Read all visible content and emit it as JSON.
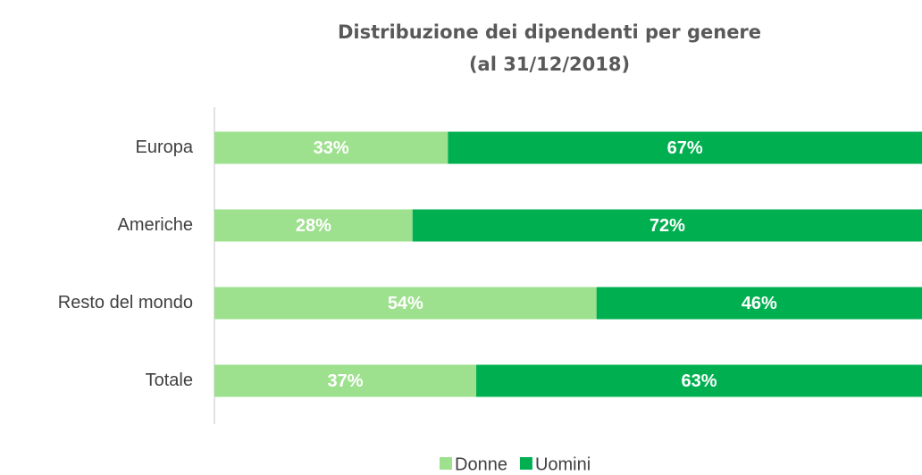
{
  "chart_data": {
    "type": "stacked-barh",
    "title": [
      "Distribuzione dei dipendenti per genere",
      "(al 31/12/2018)"
    ],
    "categories": [
      "Europa",
      "Americhe",
      "Resto del mondo",
      "Totale"
    ],
    "series": [
      {
        "name": "Donne",
        "color": "#9de08e",
        "values": [
          33,
          28,
          54,
          37
        ],
        "value_labels": [
          "33%",
          "28%",
          "54%",
          "37%"
        ]
      },
      {
        "name": "Uomini",
        "color": "#00b050",
        "values": [
          67,
          72,
          46,
          63
        ],
        "value_labels": [
          "67%",
          "72%",
          "46%",
          "63%"
        ]
      }
    ],
    "xlim": [
      0,
      100
    ],
    "legend": "bottom"
  }
}
